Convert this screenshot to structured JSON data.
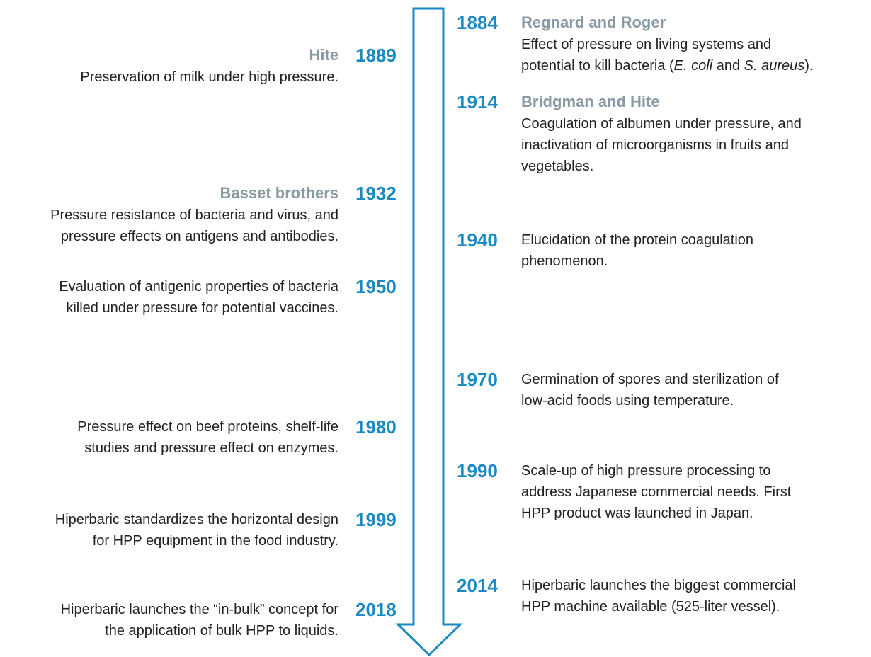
{
  "left": [
    {
      "year": "1889",
      "author": "Hite",
      "lines": [
        [
          "Preservation of milk under high pressure."
        ]
      ]
    },
    {
      "year": "1932",
      "author": "Basset brothers",
      "lines": [
        [
          "Pressure resistance of bacteria and virus, and"
        ],
        [
          "pressure effects on antigens and antibodies."
        ]
      ]
    },
    {
      "year": "1950",
      "lines": [
        [
          "Evaluation of antigenic properties of bacteria"
        ],
        [
          "killed under pressure for potential vaccines."
        ]
      ]
    },
    {
      "year": "1980",
      "lines": [
        [
          "Pressure effect on beef proteins, shelf-life"
        ],
        [
          "studies and pressure effect on enzymes."
        ]
      ]
    },
    {
      "year": "1999",
      "lines": [
        [
          "Hiperbaric standardizes the horizontal design"
        ],
        [
          "for HPP equipment in the food industry."
        ]
      ]
    },
    {
      "year": "2018",
      "lines": [
        [
          "Hiperbaric launches the “in-bulk” concept for"
        ],
        [
          "the application of bulk HPP to liquids."
        ]
      ]
    }
  ],
  "right": [
    {
      "year": "1884",
      "author": "Regnard and Roger",
      "lines": [
        [
          "Effect of pressure on living systems and"
        ],
        [
          "potential to kill bacteria (",
          {
            "em": "E. coli"
          },
          " and ",
          {
            "em": "S. aureus"
          },
          ")."
        ]
      ]
    },
    {
      "year": "1914",
      "author": "Bridgman and Hite",
      "lines": [
        [
          "Coagulation of albumen under pressure, and"
        ],
        [
          "inactivation of microorganisms in fruits and"
        ],
        [
          "vegetables."
        ]
      ]
    },
    {
      "year": "1940",
      "lines": [
        [
          "Elucidation of the protein coagulation"
        ],
        [
          "phenomenon."
        ]
      ]
    },
    {
      "year": "1970",
      "lines": [
        [
          "Germination of spores and sterilization of"
        ],
        [
          "low-acid foods using temperature."
        ]
      ]
    },
    {
      "year": "1990",
      "lines": [
        [
          "Scale-up of high pressure processing to"
        ],
        [
          "address Japanese commercial needs. First"
        ],
        [
          "HPP product was launched in Japan."
        ]
      ]
    },
    {
      "year": "2014",
      "lines": [
        [
          "Hiperbaric launches the biggest commercial"
        ],
        [
          "HPP machine available (525-liter vessel)."
        ]
      ]
    }
  ]
}
